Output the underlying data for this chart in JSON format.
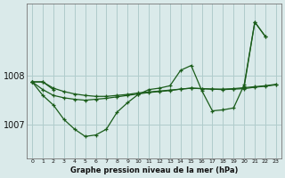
{
  "bg_color": "#daeaea",
  "grid_color": "#b0cccc",
  "line_color": "#1a5c1a",
  "title": "Graphe pression niveau de la mer (hPa)",
  "xlim": [
    -0.5,
    23.5
  ],
  "ylim": [
    1006.3,
    1009.5
  ],
  "yticks": [
    1007,
    1008
  ],
  "series": [
    [
      1007.88,
      1007.88,
      1007.75,
      1007.68,
      1007.63,
      1007.6,
      1007.58,
      1007.58,
      1007.6,
      1007.62,
      1007.65,
      1007.67,
      1007.69,
      1007.71,
      1007.73,
      1007.75,
      1007.74,
      1007.73,
      1007.73,
      1007.74,
      1007.76,
      1007.78,
      1007.8,
      1007.83
    ],
    [
      1007.88,
      1007.6,
      1007.4,
      1007.1,
      1006.9,
      1006.75,
      1006.78,
      1006.9,
      1007.25,
      1007.45,
      1007.62,
      1007.72,
      1007.75,
      1007.8,
      1008.12,
      1008.22,
      1007.7,
      1007.28,
      1007.3,
      1007.34,
      1007.82,
      1009.12,
      1008.82,
      null
    ],
    [
      1007.88,
      1007.72,
      1007.6,
      1007.55,
      1007.52,
      1007.5,
      1007.52,
      1007.54,
      1007.57,
      1007.6,
      1007.63,
      1007.66,
      1007.68,
      1007.7,
      1007.73,
      1007.75,
      1007.74,
      1007.73,
      1007.72,
      1007.73,
      1007.74,
      1007.77,
      1007.79,
      1007.82
    ],
    [
      1007.88,
      1007.88,
      1007.72,
      null,
      null,
      null,
      null,
      null,
      null,
      null,
      null,
      null,
      null,
      null,
      null,
      null,
      null,
      null,
      null,
      null,
      null,
      null,
      null,
      null
    ],
    [
      null,
      null,
      null,
      null,
      null,
      null,
      null,
      null,
      null,
      null,
      null,
      null,
      null,
      null,
      null,
      null,
      null,
      null,
      null,
      null,
      1007.78,
      1009.12,
      1008.82,
      null
    ]
  ]
}
